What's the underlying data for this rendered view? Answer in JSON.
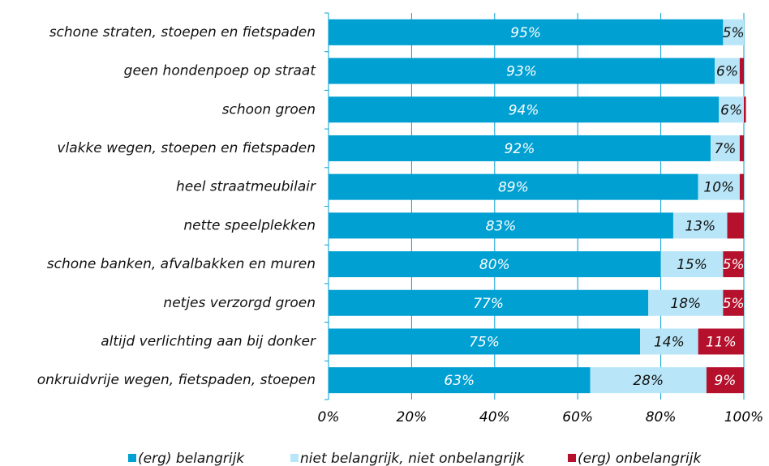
{
  "chart_data": {
    "type": "stacked_barh",
    "categories": [
      "schone straten, stoepen en fietspaden",
      "geen hondenpoep op straat",
      "schoon groen",
      "vlakke wegen, stoepen en fietspaden",
      "heel straatmeubilair",
      "nette speelplekken",
      "schone banken, afvalbakken en muren",
      "netjes verzorgd groen",
      "altijd verlichting aan bij donker",
      "onkruidvrije wegen, fietspaden, stoepen"
    ],
    "series": [
      {
        "name": "(erg) belangrijk",
        "color": "#00a0d2",
        "values": [
          95,
          93,
          94,
          92,
          89,
          83,
          80,
          77,
          75,
          63
        ],
        "value_labels": [
          "95%",
          "93%",
          "94%",
          "92%",
          "89%",
          "83%",
          "80%",
          "77%",
          "75%",
          "63%"
        ]
      },
      {
        "name": "niet belangrijk, niet onbelangrijk",
        "color": "#b8e6f8",
        "values": [
          5,
          6,
          6,
          7,
          10,
          13,
          15,
          18,
          14,
          28
        ],
        "value_labels": [
          "5%",
          "6%",
          "6%",
          "7%",
          "10%",
          "13%",
          "15%",
          "18%",
          "14%",
          "28%"
        ]
      },
      {
        "name": "(erg) onbelangrijk",
        "color": "#b5102c",
        "values": [
          0,
          1,
          0.5,
          1,
          1,
          4,
          5,
          5,
          11,
          9
        ],
        "value_labels": [
          null,
          null,
          null,
          null,
          null,
          null,
          "5%",
          "5%",
          "11%",
          "9%"
        ]
      }
    ],
    "xlim": [
      0,
      100
    ],
    "xticks": [
      {
        "value": 0,
        "label": "0%"
      },
      {
        "value": 20,
        "label": "20%"
      },
      {
        "value": 40,
        "label": "40%"
      },
      {
        "value": 60,
        "label": "60%"
      },
      {
        "value": 80,
        "label": "80%"
      },
      {
        "value": 100,
        "label": "100%"
      }
    ],
    "grid": true
  }
}
